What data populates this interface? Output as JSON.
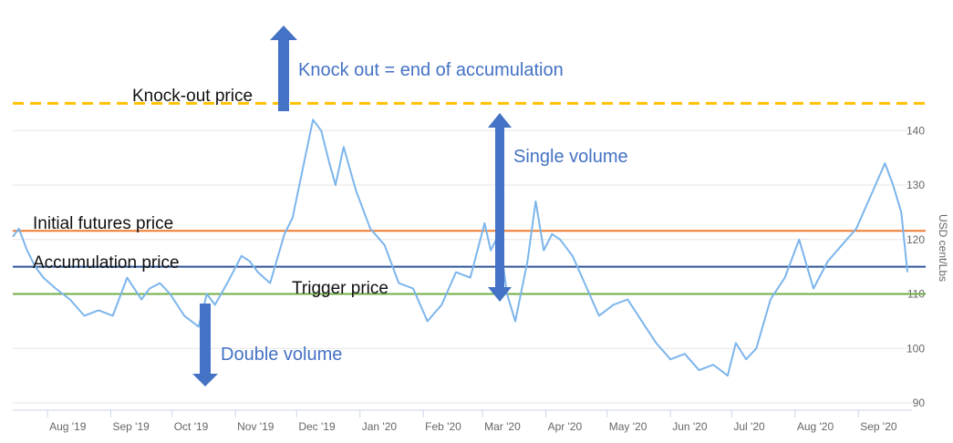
{
  "chart_data": {
    "type": "line",
    "title": "",
    "xlabel": "",
    "ylabel": "USD cent/Lbs",
    "ylim": [
      90,
      143
    ],
    "grid": true,
    "legend": "none",
    "x_tick_labels": [
      "Aug '19",
      "Sep '19",
      "Oct '19",
      "Nov '19",
      "Dec '19",
      "Jan '20",
      "Feb '20",
      "Mar '20",
      "Apr '20",
      "May '20",
      "Jun '20",
      "Jul '20",
      "Aug '20",
      "Sep '20"
    ],
    "y_ticks": [
      90,
      100,
      110,
      120,
      130,
      140
    ],
    "series": [
      {
        "color": "#7CB5EC",
        "x": [
          "2019-07-15",
          "2019-07-18",
          "2019-07-22",
          "2019-07-26",
          "2019-07-30",
          "2019-08-05",
          "2019-08-12",
          "2019-08-19",
          "2019-08-26",
          "2019-09-02",
          "2019-09-09",
          "2019-09-16",
          "2019-09-20",
          "2019-09-25",
          "2019-09-30",
          "2019-10-07",
          "2019-10-14",
          "2019-10-18",
          "2019-10-22",
          "2019-10-28",
          "2019-11-04",
          "2019-11-08",
          "2019-11-12",
          "2019-11-18",
          "2019-11-25",
          "2019-11-29",
          "2019-12-04",
          "2019-12-09",
          "2019-12-13",
          "2019-12-17",
          "2019-12-20",
          "2019-12-24",
          "2019-12-30",
          "2020-01-06",
          "2020-01-13",
          "2020-01-20",
          "2020-01-27",
          "2020-02-03",
          "2020-02-10",
          "2020-02-17",
          "2020-02-24",
          "2020-03-02",
          "2020-03-05",
          "2020-03-09",
          "2020-03-13",
          "2020-03-17",
          "2020-03-23",
          "2020-03-27",
          "2020-03-31",
          "2020-04-04",
          "2020-04-08",
          "2020-04-14",
          "2020-04-20",
          "2020-04-27",
          "2020-05-04",
          "2020-05-11",
          "2020-05-18",
          "2020-05-25",
          "2020-06-01",
          "2020-06-08",
          "2020-06-15",
          "2020-06-22",
          "2020-06-29",
          "2020-07-03",
          "2020-07-08",
          "2020-07-13",
          "2020-07-20",
          "2020-07-27",
          "2020-08-03",
          "2020-08-10",
          "2020-08-17",
          "2020-08-24",
          "2020-08-31",
          "2020-09-07",
          "2020-09-14",
          "2020-09-18",
          "2020-09-22",
          "2020-09-25"
        ],
        "y": [
          120.5,
          122,
          118,
          115,
          113,
          111,
          109,
          106,
          107,
          106,
          113,
          109,
          111,
          112,
          110,
          106,
          104,
          110,
          108,
          112,
          117,
          116,
          114,
          112,
          121,
          124,
          133,
          142,
          140,
          134,
          130,
          137,
          129,
          122,
          119,
          112,
          111,
          105,
          108,
          114,
          113,
          123,
          118,
          121,
          110,
          105,
          116,
          127,
          118,
          121,
          120,
          117,
          112,
          106,
          108,
          109,
          105,
          101,
          98,
          99,
          96,
          97,
          95,
          101,
          98,
          100,
          109,
          113,
          120,
          111,
          116,
          119,
          122,
          128,
          134,
          130,
          125,
          114
        ]
      }
    ],
    "reference_lines": [
      {
        "label": "Knock-out price",
        "value": 145,
        "color": "#FFC000",
        "style": "dashed"
      },
      {
        "label": "Initial futures price",
        "value": 121.6,
        "color": "#ED7D31",
        "style": "solid"
      },
      {
        "label": "Accumulation price",
        "value": 115,
        "color": "#2F5597",
        "style": "solid"
      },
      {
        "label": "Trigger price",
        "value": 110,
        "color": "#70AD47",
        "style": "solid"
      }
    ],
    "annotations": [
      {
        "text": "Knock out = end of accumulation",
        "arrow": "up"
      },
      {
        "text": "Single volume",
        "arrow": "both"
      },
      {
        "text": "Double volume",
        "arrow": "down"
      }
    ]
  }
}
